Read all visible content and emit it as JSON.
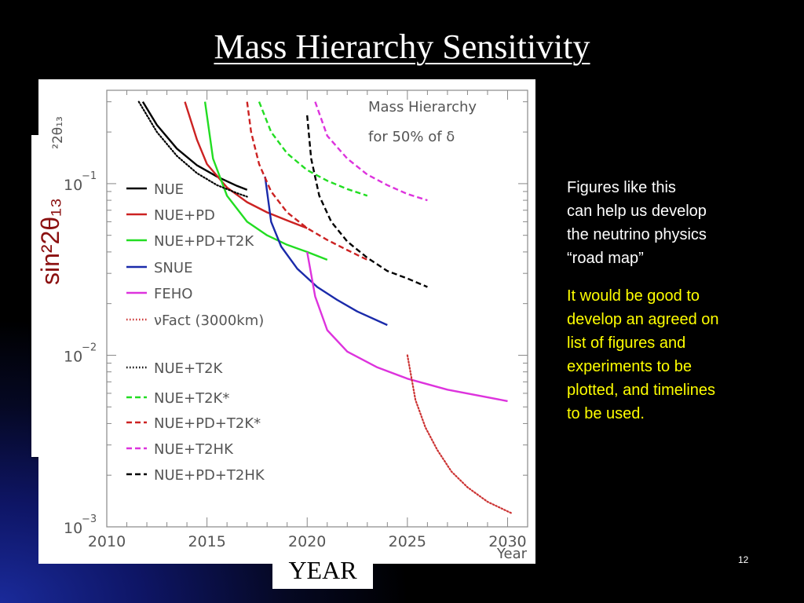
{
  "slide": {
    "title": "Mass Hierarchy Sensitivity",
    "notes_white": "Figures like this\ncan help us develop\nthe neutrino physics\n“road map”",
    "notes_yellow": "It would be good to\ndevelop an agreed on\nlist of figures and\nexperiments to be\nplotted, and timelines\nto be used.",
    "year_label": "YEAR",
    "page_number": "12",
    "big_ylabel": "sin²2θ₁₃",
    "partial_ylabel": "²2θ₁₃"
  },
  "chart_data": {
    "type": "line",
    "annotation": [
      "Mass Hierarchy",
      "for 50% of δ"
    ],
    "xlabel": "Year",
    "ylabel": "sin²2θ₁₃",
    "xlim": [
      2010,
      2031
    ],
    "ylim": [
      0.001,
      0.35
    ],
    "yscale": "log",
    "xticks": [
      2010,
      2015,
      2020,
      2025,
      2030
    ],
    "xtick_labels": [
      "2010",
      "2015",
      "2020",
      "2025",
      "2030"
    ],
    "yticks": [
      0.1,
      0.01,
      0.001
    ],
    "ytick_labels": [
      {
        "base": "10",
        "exp": "−1"
      },
      {
        "base": "10",
        "exp": "−2"
      },
      {
        "base": "10",
        "exp": "−3"
      }
    ],
    "grid": false,
    "legend": "left",
    "series": [
      {
        "name": "NUE",
        "color": "#000000",
        "dash": "solid",
        "x": [
          2011.8,
          2012.5,
          2013.5,
          2014.5,
          2015.5,
          2016.5,
          2017.0
        ],
        "y": [
          0.3,
          0.22,
          0.16,
          0.128,
          0.11,
          0.097,
          0.092
        ]
      },
      {
        "name": "NUE+PD",
        "color": "#cc2222",
        "dash": "solid",
        "x": [
          2013.9,
          2014.5,
          2015.0,
          2016.0,
          2017.0,
          2018.0,
          2019.0,
          2020.0
        ],
        "y": [
          0.3,
          0.18,
          0.13,
          0.095,
          0.078,
          0.068,
          0.061,
          0.055
        ]
      },
      {
        "name": "NUE+PD+T2K",
        "color": "#22dd22",
        "dash": "solid",
        "x": [
          2014.9,
          2015.3,
          2016.0,
          2017.0,
          2018.0,
          2019.0,
          2020.0,
          2021.0
        ],
        "y": [
          0.3,
          0.14,
          0.085,
          0.06,
          0.05,
          0.044,
          0.04,
          0.036
        ]
      },
      {
        "name": "SNUE",
        "color": "#1a2aaa",
        "dash": "solid",
        "x": [
          2017.9,
          2018.2,
          2018.7,
          2019.5,
          2020.5,
          2021.5,
          2022.5,
          2024.0
        ],
        "y": [
          0.11,
          0.06,
          0.043,
          0.032,
          0.025,
          0.021,
          0.018,
          0.015
        ]
      },
      {
        "name": "FEHO",
        "color": "#dd33dd",
        "dash": "solid",
        "x": [
          2020.0,
          2020.4,
          2021.0,
          2022.0,
          2023.5,
          2025.0,
          2027.0,
          2030.0
        ],
        "y": [
          0.04,
          0.022,
          0.014,
          0.0105,
          0.0085,
          0.0073,
          0.0063,
          0.0054
        ]
      },
      {
        "name": "νFact (3000km)",
        "color": "#cc3333",
        "dash": "dotted",
        "x": [
          2025.0,
          2025.4,
          2025.9,
          2026.5,
          2027.2,
          2028.0,
          2029.0,
          2030.2
        ],
        "y": [
          0.01,
          0.0055,
          0.0038,
          0.0028,
          0.0021,
          0.0017,
          0.0014,
          0.0012
        ]
      },
      {
        "name": "NUE+T2K",
        "color": "#000000",
        "dash": "dotted",
        "x": [
          2011.6,
          2012.5,
          2013.5,
          2014.5,
          2015.5,
          2016.5,
          2017.0
        ],
        "y": [
          0.3,
          0.2,
          0.145,
          0.115,
          0.098,
          0.088,
          0.084
        ]
      },
      {
        "name": "NUE+T2K*",
        "color": "#22dd22",
        "dash": "dashed",
        "x": [
          2017.6,
          2018.2,
          2019.0,
          2020.0,
          2021.0,
          2022.0,
          2023.0
        ],
        "y": [
          0.3,
          0.2,
          0.15,
          0.12,
          0.104,
          0.093,
          0.085
        ]
      },
      {
        "name": "NUE+PD+T2K*",
        "color": "#cc2222",
        "dash": "dashed",
        "x": [
          2017.0,
          2017.2,
          2017.6,
          2018.2,
          2019.0,
          2020.0,
          2021.0,
          2022.0,
          2023.0
        ],
        "y": [
          0.3,
          0.2,
          0.13,
          0.09,
          0.068,
          0.055,
          0.047,
          0.041,
          0.036
        ]
      },
      {
        "name": "NUE+T2HK",
        "color": "#dd33dd",
        "dash": "dashed",
        "x": [
          2020.4,
          2021.0,
          2022.0,
          2023.0,
          2024.0,
          2025.0,
          2026.0
        ],
        "y": [
          0.3,
          0.19,
          0.14,
          0.113,
          0.098,
          0.087,
          0.08
        ]
      },
      {
        "name": "NUE+PD+T2HK",
        "color": "#000000",
        "dash": "dashed",
        "x": [
          2020.0,
          2020.2,
          2020.6,
          2021.2,
          2022.0,
          2023.0,
          2024.0,
          2025.0,
          2026.0
        ],
        "y": [
          0.25,
          0.14,
          0.085,
          0.06,
          0.046,
          0.037,
          0.031,
          0.028,
          0.025
        ]
      }
    ]
  },
  "colors": {
    "title": "#ffffff",
    "notes_white": "#ffffff",
    "notes_yellow": "#ffff00",
    "ylabel": "#8b1010"
  }
}
